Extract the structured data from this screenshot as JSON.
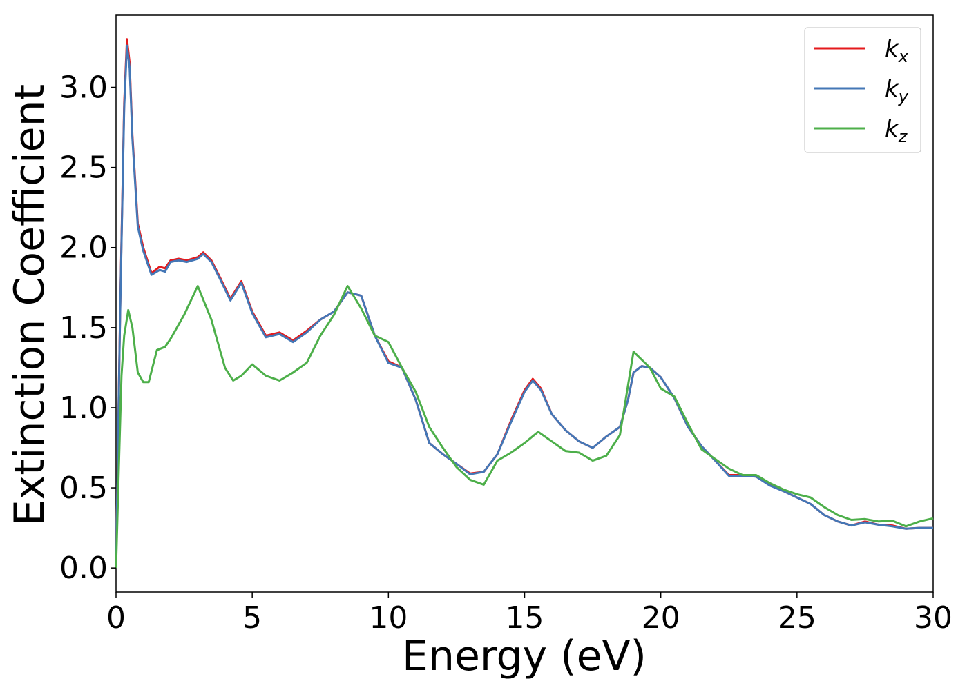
{
  "chart_data": {
    "type": "line",
    "title": "",
    "xlabel": "Energy (eV)",
    "ylabel": "Extinction Coefficient",
    "xlim": [
      0,
      30
    ],
    "ylim": [
      -0.15,
      3.45
    ],
    "xticks": [
      "0",
      "5",
      "10",
      "15",
      "20",
      "25",
      "30"
    ],
    "yticks": [
      "0.0",
      "0.5",
      "1.0",
      "1.5",
      "2.0",
      "2.5",
      "3.0"
    ],
    "grid": false,
    "legend_position": "top-right",
    "series": [
      {
        "name": "k_x",
        "label_base": "k",
        "label_sub": "x",
        "color": "#e41a1c",
        "x": [
          0.0,
          0.15,
          0.3,
          0.4,
          0.5,
          0.6,
          0.8,
          1.0,
          1.3,
          1.6,
          1.8,
          2.0,
          2.3,
          2.6,
          3.0,
          3.2,
          3.5,
          3.8,
          4.2,
          4.6,
          5.0,
          5.5,
          6.0,
          6.5,
          7.0,
          7.5,
          8.0,
          8.5,
          9.0,
          9.5,
          10.0,
          10.5,
          11.0,
          11.5,
          12.0,
          12.5,
          13.0,
          13.5,
          14.0,
          14.5,
          15.0,
          15.3,
          15.6,
          16.0,
          16.5,
          17.0,
          17.5,
          18.0,
          18.5,
          18.8,
          19.0,
          19.3,
          19.6,
          20.0,
          20.5,
          21.0,
          21.5,
          22.0,
          22.5,
          23.0,
          23.5,
          24.0,
          24.5,
          25.0,
          25.5,
          26.0,
          26.5,
          27.0,
          27.5,
          28.0,
          28.5,
          29.0,
          29.5,
          30.0
        ],
        "values": [
          0.0,
          1.6,
          2.9,
          3.3,
          3.15,
          2.7,
          2.15,
          2.0,
          1.84,
          1.88,
          1.87,
          1.92,
          1.93,
          1.92,
          1.94,
          1.97,
          1.92,
          1.82,
          1.68,
          1.79,
          1.6,
          1.45,
          1.47,
          1.42,
          1.48,
          1.55,
          1.6,
          1.72,
          1.7,
          1.45,
          1.29,
          1.25,
          1.05,
          0.78,
          0.71,
          0.65,
          0.59,
          0.6,
          0.71,
          0.92,
          1.11,
          1.18,
          1.12,
          0.96,
          0.86,
          0.79,
          0.75,
          0.82,
          0.88,
          1.05,
          1.22,
          1.26,
          1.25,
          1.19,
          1.06,
          0.88,
          0.76,
          0.67,
          0.58,
          0.58,
          0.57,
          0.52,
          0.48,
          0.44,
          0.4,
          0.33,
          0.29,
          0.265,
          0.29,
          0.27,
          0.265,
          0.245,
          0.25,
          0.25
        ]
      },
      {
        "name": "k_y",
        "label_base": "k",
        "label_sub": "y",
        "color": "#4477b6",
        "x": [
          0.0,
          0.15,
          0.3,
          0.4,
          0.5,
          0.6,
          0.8,
          1.0,
          1.3,
          1.6,
          1.8,
          2.0,
          2.3,
          2.6,
          3.0,
          3.2,
          3.5,
          3.8,
          4.2,
          4.6,
          5.0,
          5.5,
          6.0,
          6.5,
          7.0,
          7.5,
          8.0,
          8.5,
          9.0,
          9.5,
          10.0,
          10.5,
          11.0,
          11.5,
          12.0,
          12.5,
          13.0,
          13.5,
          14.0,
          14.5,
          15.0,
          15.3,
          15.6,
          16.0,
          16.5,
          17.0,
          17.5,
          18.0,
          18.5,
          18.8,
          19.0,
          19.3,
          19.6,
          20.0,
          20.5,
          21.0,
          21.5,
          22.0,
          22.5,
          23.0,
          23.5,
          24.0,
          24.5,
          25.0,
          25.5,
          26.0,
          26.5,
          27.0,
          27.5,
          28.0,
          28.5,
          29.0,
          29.5,
          30.0
        ],
        "values": [
          0.0,
          1.58,
          2.87,
          3.26,
          3.12,
          2.68,
          2.13,
          1.98,
          1.83,
          1.86,
          1.85,
          1.91,
          1.92,
          1.91,
          1.93,
          1.96,
          1.91,
          1.81,
          1.67,
          1.78,
          1.59,
          1.44,
          1.46,
          1.41,
          1.47,
          1.55,
          1.6,
          1.72,
          1.7,
          1.45,
          1.28,
          1.25,
          1.05,
          0.78,
          0.71,
          0.65,
          0.585,
          0.6,
          0.71,
          0.91,
          1.1,
          1.17,
          1.11,
          0.96,
          0.86,
          0.79,
          0.75,
          0.82,
          0.88,
          1.05,
          1.22,
          1.26,
          1.25,
          1.19,
          1.06,
          0.88,
          0.76,
          0.67,
          0.575,
          0.575,
          0.57,
          0.515,
          0.48,
          0.44,
          0.4,
          0.33,
          0.29,
          0.265,
          0.285,
          0.27,
          0.26,
          0.245,
          0.25,
          0.25
        ]
      },
      {
        "name": "k_z",
        "label_base": "k",
        "label_sub": "z",
        "color": "#4daf4a",
        "x": [
          0.0,
          0.1,
          0.2,
          0.3,
          0.45,
          0.6,
          0.8,
          1.0,
          1.2,
          1.5,
          1.8,
          2.0,
          2.5,
          3.0,
          3.5,
          4.0,
          4.3,
          4.6,
          5.0,
          5.5,
          6.0,
          6.5,
          7.0,
          7.5,
          8.0,
          8.5,
          9.0,
          9.5,
          10.0,
          10.5,
          11.0,
          11.5,
          12.0,
          12.5,
          13.0,
          13.5,
          14.0,
          14.5,
          15.0,
          15.5,
          16.0,
          16.5,
          17.0,
          17.5,
          18.0,
          18.5,
          19.0,
          19.3,
          19.6,
          20.0,
          20.5,
          21.0,
          21.5,
          22.0,
          22.5,
          23.0,
          23.5,
          24.0,
          24.5,
          25.0,
          25.5,
          26.0,
          26.5,
          27.0,
          27.5,
          28.0,
          28.5,
          29.0,
          29.5,
          30.0
        ],
        "values": [
          0.0,
          0.6,
          1.2,
          1.45,
          1.61,
          1.5,
          1.22,
          1.16,
          1.16,
          1.36,
          1.38,
          1.43,
          1.58,
          1.76,
          1.55,
          1.25,
          1.17,
          1.2,
          1.27,
          1.2,
          1.17,
          1.22,
          1.28,
          1.45,
          1.58,
          1.76,
          1.62,
          1.45,
          1.41,
          1.25,
          1.1,
          0.88,
          0.75,
          0.63,
          0.55,
          0.52,
          0.67,
          0.72,
          0.78,
          0.85,
          0.79,
          0.73,
          0.72,
          0.67,
          0.7,
          0.83,
          1.35,
          1.3,
          1.25,
          1.12,
          1.07,
          0.9,
          0.74,
          0.68,
          0.62,
          0.58,
          0.58,
          0.53,
          0.49,
          0.46,
          0.44,
          0.38,
          0.33,
          0.3,
          0.305,
          0.29,
          0.295,
          0.26,
          0.29,
          0.31
        ]
      }
    ]
  }
}
